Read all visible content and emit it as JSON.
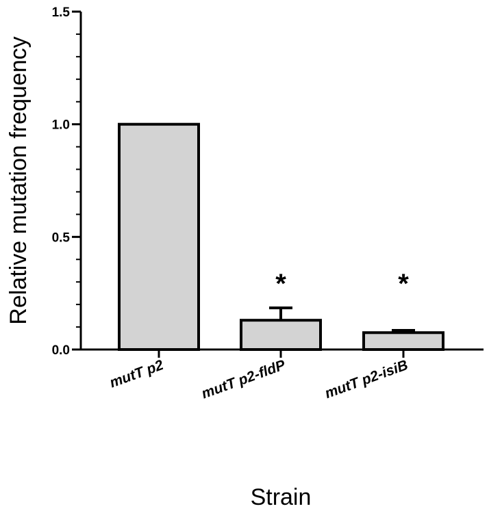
{
  "chart_data": {
    "type": "bar",
    "title": "",
    "xlabel": "Strain",
    "ylabel": "Relative mutation frequency",
    "ylim": [
      0,
      1.5
    ],
    "yticks": [
      "0.0",
      "0.5",
      "1.0",
      "1.5"
    ],
    "categories": [
      "mutT p2",
      "mutT p2-fldP",
      "mutT p2-isiB"
    ],
    "values": [
      1.0,
      0.13,
      0.075
    ],
    "errors": [
      0,
      0.055,
      0.01
    ],
    "annotations": [
      "",
      "*",
      "*"
    ],
    "bar_color": "#d3d3d3",
    "grid": false
  }
}
